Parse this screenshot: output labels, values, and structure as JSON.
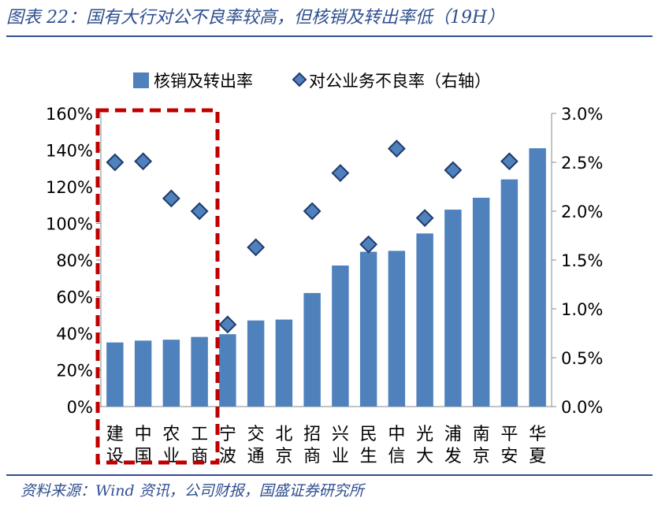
{
  "title": "图表 22：国有大行对公不良率较高，但核销及转出率低（19H）",
  "source": "资料来源：Wind 资讯，公司财报，国盛证券研究所",
  "colors": {
    "bar": "#4f81bd",
    "marker": "#1f3b6b",
    "highlight": "#c00000",
    "brand": "#2f4f8f"
  },
  "chart_data": {
    "type": "bar",
    "categories": [
      "建设",
      "中国",
      "农业",
      "工商",
      "宁波",
      "交通",
      "北京",
      "招商",
      "兴业",
      "民生",
      "中信",
      "光大",
      "浦发",
      "南京",
      "平安",
      "华夏"
    ],
    "series": [
      {
        "name": "核销及转出率",
        "type": "bar",
        "axis": "left",
        "values": [
          35,
          36,
          36.5,
          38,
          39.5,
          47,
          47.5,
          62,
          77,
          84.5,
          85,
          94.5,
          107.5,
          114,
          124,
          141
        ]
      },
      {
        "name": "对公业务不良率（右轴）",
        "type": "scatter",
        "axis": "right",
        "values": [
          2.5,
          2.51,
          2.13,
          2.0,
          0.84,
          1.63,
          null,
          2.0,
          2.39,
          1.66,
          2.64,
          1.93,
          2.42,
          null,
          2.51,
          null
        ]
      }
    ],
    "yticks_left": [
      "0%",
      "20%",
      "40%",
      "60%",
      "80%",
      "100%",
      "120%",
      "140%",
      "160%"
    ],
    "yticks_right": [
      "0.0%",
      "0.5%",
      "1.0%",
      "1.5%",
      "2.0%",
      "2.5%",
      "3.0%"
    ],
    "ylim_left": [
      0,
      160
    ],
    "ylim_right": [
      0,
      3.0
    ],
    "legend_position": "top",
    "highlighted_categories": [
      "建设",
      "中国",
      "农业",
      "工商"
    ]
  }
}
